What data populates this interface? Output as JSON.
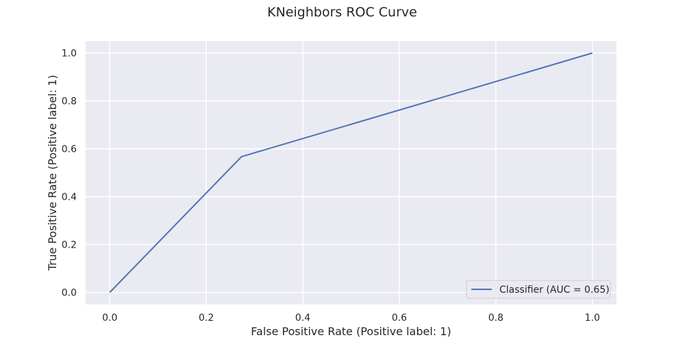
{
  "chart_data": {
    "type": "line",
    "title": "KNeighbors ROC Curve",
    "xlabel": "False Positive Rate (Positive label: 1)",
    "ylabel": "True Positive Rate (Positive label: 1)",
    "xlim": [
      -0.05,
      1.05
    ],
    "ylim": [
      -0.05,
      1.05
    ],
    "xticks": [
      0.0,
      0.2,
      0.4,
      0.6,
      0.8,
      1.0
    ],
    "yticks": [
      0.0,
      0.2,
      0.4,
      0.6,
      0.8,
      1.0
    ],
    "xtick_labels": [
      "0.0",
      "0.2",
      "0.4",
      "0.6",
      "0.8",
      "1.0"
    ],
    "ytick_labels": [
      "0.0",
      "0.2",
      "0.4",
      "0.6",
      "0.8",
      "1.0"
    ],
    "grid": true,
    "legend_position": "lower-right",
    "series": [
      {
        "name": "Classifier (AUC = 0.65)",
        "x": [
          0.0,
          0.273,
          1.0
        ],
        "y": [
          0.0,
          0.567,
          1.0
        ],
        "color": "#4c72b0"
      }
    ],
    "background_color": "#eaeaf2",
    "grid_color": "#ffffff"
  }
}
